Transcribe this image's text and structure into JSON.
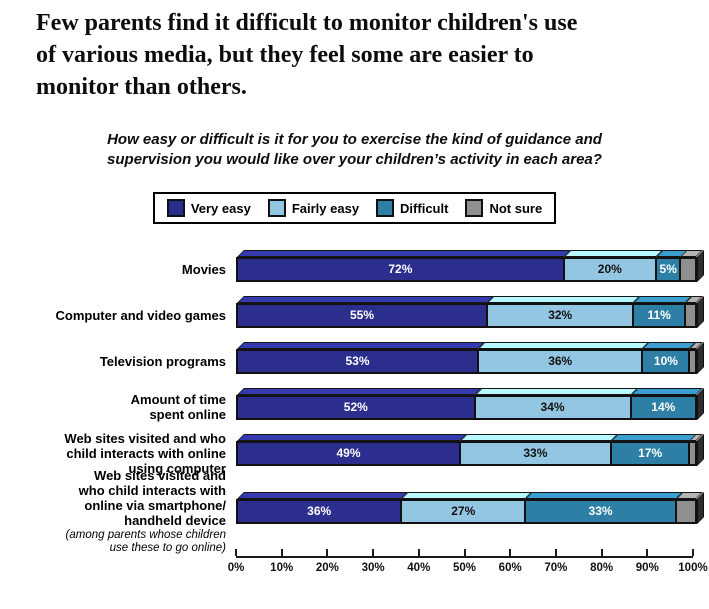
{
  "page": {
    "title": "Few parents find it difficult to monitor children's use\nof various media, but they feel some are easier to\nmonitor than others.",
    "question": "How easy or difficult is it for you to exercise the kind of guidance and\nsupervision you would like over your children’s activity in each area?"
  },
  "colors": {
    "very_easy": "#2B2E8C",
    "fairly_easy": "#93C6E3",
    "difficult": "#2E7FA5",
    "not_sure": "#8F8F8F",
    "outline": "#111111"
  },
  "chart_data": {
    "type": "bar",
    "orientation": "horizontal",
    "stacked": true,
    "unit": "%",
    "xlim": [
      0,
      100
    ],
    "x_ticks": [
      "0%",
      "10%",
      "20%",
      "30%",
      "40%",
      "50%",
      "60%",
      "70%",
      "80%",
      "90%",
      "100%"
    ],
    "legend_position": "top",
    "categories": [
      {
        "label": "Movies"
      },
      {
        "label": "Computer and video games"
      },
      {
        "label": "Television programs"
      },
      {
        "label": "Amount of time\nspent online"
      },
      {
        "label": "Web sites visited and who\nchild interacts with online\nusing computer"
      },
      {
        "label": "Web sites visited and\nwho child interacts with\nonline via smartphone/\nhandheld device",
        "note": "(among parents whose children\nuse these to go online)"
      }
    ],
    "series": [
      {
        "name": "Very easy",
        "color_key": "very_easy",
        "text_color": "#FFFFFF",
        "show_labels": true,
        "values": [
          72,
          55,
          53,
          52,
          49,
          36
        ]
      },
      {
        "name": "Fairly easy",
        "color_key": "fairly_easy",
        "text_color": "#111111",
        "show_labels": true,
        "values": [
          20,
          32,
          36,
          34,
          33,
          27
        ]
      },
      {
        "name": "Difficult",
        "color_key": "difficult",
        "text_color": "#FFFFFF",
        "show_labels": true,
        "values": [
          5,
          11,
          10,
          14,
          17,
          33
        ]
      },
      {
        "name": "Not sure",
        "color_key": "not_sure",
        "text_color": "#111111",
        "show_labels": false,
        "values": [
          3,
          2,
          1,
          0,
          1,
          4
        ]
      }
    ]
  }
}
